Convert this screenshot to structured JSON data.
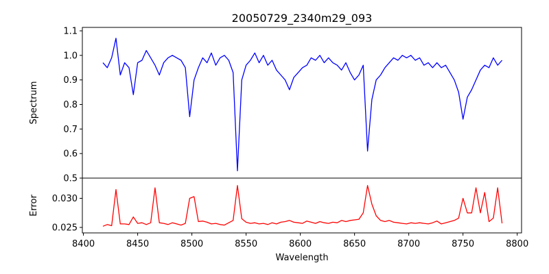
{
  "chart_data": {
    "type": "line",
    "title": "20050729_2340m29_093",
    "xlabel": "Wavelength",
    "xlim": [
      8399,
      8804
    ],
    "xticks": [
      8400,
      8450,
      8500,
      8550,
      8600,
      8650,
      8700,
      8750,
      8800
    ],
    "x_start": 8418,
    "x_step": 4,
    "panels": [
      {
        "ylabel": "Spectrum",
        "ylim": [
          0.5,
          1.114
        ],
        "yticks": [
          "0.5",
          "0.6",
          "0.7",
          "0.8",
          "0.9",
          "1.0",
          "1.1"
        ],
        "color": "#0000ff",
        "series_name": "Spectrum",
        "values": [
          0.97,
          0.95,
          0.99,
          1.07,
          0.92,
          0.97,
          0.95,
          0.84,
          0.97,
          0.98,
          1.02,
          0.99,
          0.96,
          0.92,
          0.97,
          0.99,
          1.0,
          0.99,
          0.98,
          0.95,
          0.75,
          0.9,
          0.95,
          0.99,
          0.97,
          1.01,
          0.96,
          0.99,
          1.0,
          0.98,
          0.93,
          0.53,
          0.9,
          0.96,
          0.98,
          1.01,
          0.97,
          1.0,
          0.96,
          0.98,
          0.94,
          0.92,
          0.9,
          0.86,
          0.91,
          0.93,
          0.95,
          0.96,
          0.99,
          0.98,
          1.0,
          0.97,
          0.99,
          0.97,
          0.96,
          0.94,
          0.97,
          0.93,
          0.9,
          0.92,
          0.96,
          0.61,
          0.82,
          0.9,
          0.92,
          0.95,
          0.97,
          0.99,
          0.98,
          1.0,
          0.99,
          1.0,
          0.98,
          0.99,
          0.96,
          0.97,
          0.95,
          0.97,
          0.95,
          0.96,
          0.93,
          0.9,
          0.85,
          0.74,
          0.83,
          0.86,
          0.9,
          0.94,
          0.96,
          0.95,
          0.99,
          0.96,
          0.98
        ]
      },
      {
        "ylabel": "Error",
        "ylim": [
          0.02406,
          0.03347
        ],
        "yticks": [
          "0.025",
          "0.030"
        ],
        "color": "#ff0000",
        "series_name": "Error",
        "values": [
          0.0252,
          0.0255,
          0.0253,
          0.0315,
          0.0256,
          0.0256,
          0.0255,
          0.0268,
          0.0257,
          0.0258,
          0.0255,
          0.0258,
          0.0318,
          0.0258,
          0.0257,
          0.0255,
          0.0258,
          0.0256,
          0.0254,
          0.0257,
          0.03,
          0.0303,
          0.026,
          0.0261,
          0.0259,
          0.0256,
          0.0257,
          0.0255,
          0.0254,
          0.0258,
          0.0262,
          0.0322,
          0.0265,
          0.0259,
          0.0257,
          0.0258,
          0.0256,
          0.0257,
          0.0255,
          0.0258,
          0.0256,
          0.0259,
          0.026,
          0.0262,
          0.0259,
          0.0258,
          0.0257,
          0.0261,
          0.0259,
          0.0257,
          0.026,
          0.0258,
          0.0257,
          0.0259,
          0.0258,
          0.0262,
          0.026,
          0.0262,
          0.0263,
          0.0264,
          0.0275,
          0.0322,
          0.029,
          0.027,
          0.0262,
          0.026,
          0.0262,
          0.0259,
          0.0258,
          0.0257,
          0.0256,
          0.0258,
          0.0257,
          0.0258,
          0.0257,
          0.0256,
          0.0258,
          0.0261,
          0.0256,
          0.0258,
          0.026,
          0.0262,
          0.0266,
          0.03,
          0.0275,
          0.0275,
          0.0318,
          0.0275,
          0.031,
          0.026,
          0.0266,
          0.0318,
          0.0257
        ]
      }
    ]
  }
}
